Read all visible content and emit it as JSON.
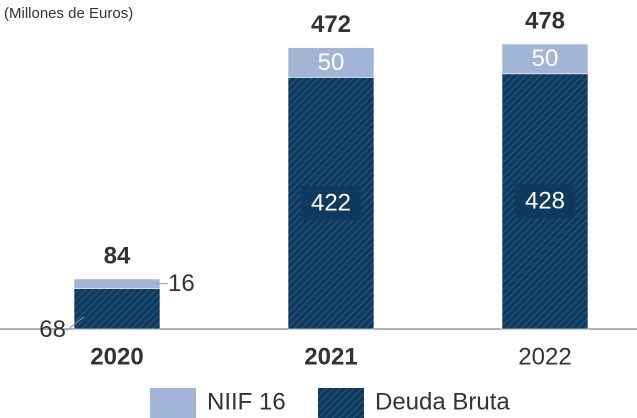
{
  "chart_data": {
    "type": "stacked_bar",
    "subtitle": "(Millones de Euros)",
    "categories": [
      "2020",
      "2021",
      "2022"
    ],
    "series": [
      {
        "name": "Deuda Bruta",
        "color": "#0e3a5f",
        "values": [
          68,
          422,
          428
        ]
      },
      {
        "name": "NIIF 16",
        "color": "#a3b5d6",
        "values": [
          16,
          50,
          50
        ]
      }
    ],
    "totals": [
      84,
      472,
      478
    ]
  }
}
